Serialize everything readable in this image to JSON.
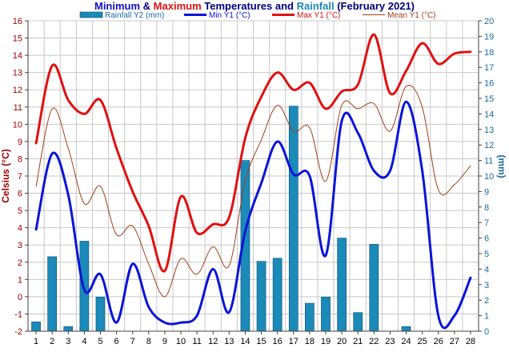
{
  "chart_data": {
    "type": "line",
    "title": {
      "part1": "Minimum",
      "part2": " & ",
      "part3": "Maximum",
      "part4": " Temperatures and ",
      "part5": "Rainfall",
      "part6": " (February 2021)"
    },
    "colors": {
      "title_min": "#1010c8",
      "title_max": "#e01010",
      "title_rain": "#1a8ab8",
      "title_dark": "#000080",
      "left_axis": "#a00000",
      "right_axis": "#1a6aa0",
      "bars": "#1a8ab8",
      "bars_edge": "#0a4a70",
      "min": "#0a14d8",
      "max": "#e01010",
      "mean": "#a0401a",
      "grid": "#c8c8c8"
    },
    "ylabel": "Celsius (°C)",
    "y2label": "(mm)",
    "ylim": [
      -2,
      16
    ],
    "y2lim": [
      0,
      20
    ],
    "yticks": [
      -2,
      -1,
      0,
      1,
      2,
      3,
      4,
      5,
      6,
      7,
      8,
      9,
      10,
      11,
      12,
      13,
      14,
      15,
      16
    ],
    "y2ticks": [
      0,
      1,
      2,
      3,
      4,
      5,
      6,
      7,
      8,
      9,
      10,
      11,
      12,
      13,
      14,
      15,
      16,
      17,
      18,
      19,
      20
    ],
    "x": [
      1,
      2,
      3,
      4,
      5,
      6,
      7,
      8,
      9,
      10,
      11,
      12,
      13,
      14,
      15,
      16,
      17,
      18,
      19,
      20,
      21,
      22,
      23,
      24,
      25,
      26,
      27,
      28
    ],
    "grid": true,
    "legend_position": "top",
    "series": [
      {
        "name": "Rainfall Y2 (mm)",
        "kind": "bar",
        "axis": "y2",
        "values": [
          0.6,
          4.8,
          0.3,
          5.8,
          2.2,
          0,
          0,
          0,
          0,
          0,
          0,
          0,
          0,
          11.0,
          4.5,
          4.7,
          14.5,
          1.8,
          2.2,
          6.0,
          1.2,
          5.6,
          0,
          0.3,
          0,
          0,
          0,
          0
        ]
      },
      {
        "name": "Min Y1 (°C)",
        "kind": "line",
        "axis": "y1",
        "values": [
          3.9,
          8.3,
          5.9,
          0.4,
          1.3,
          -1.5,
          1.9,
          -0.6,
          -1.5,
          -1.5,
          -1.1,
          1.6,
          -0.9,
          3.8,
          6.6,
          9.0,
          7.1,
          7.0,
          2.4,
          10.2,
          9.5,
          7.3,
          7.3,
          11.3,
          7.3,
          -1.1,
          -1.1,
          1.1
        ]
      },
      {
        "name": "Max Y1 (°C)",
        "kind": "line",
        "axis": "y1",
        "values": [
          8.9,
          13.4,
          11.4,
          10.6,
          11.4,
          8.6,
          6.1,
          4.1,
          1.5,
          5.8,
          3.7,
          4.2,
          4.6,
          9.2,
          11.6,
          13.0,
          12.0,
          12.4,
          10.9,
          11.9,
          12.3,
          15.2,
          11.8,
          13.1,
          14.7,
          13.5,
          14.1,
          14.2
        ]
      },
      {
        "name": "Mean Y1 (°C)",
        "kind": "line",
        "axis": "y1",
        "values": [
          6.4,
          10.9,
          8.6,
          5.4,
          6.4,
          3.6,
          4.1,
          1.9,
          0.0,
          2.2,
          1.3,
          2.9,
          1.8,
          6.7,
          9.1,
          11.1,
          9.6,
          9.8,
          6.7,
          11.1,
          10.9,
          11.2,
          9.6,
          12.2,
          11.0,
          6.2,
          6.5,
          7.6
        ]
      }
    ]
  }
}
